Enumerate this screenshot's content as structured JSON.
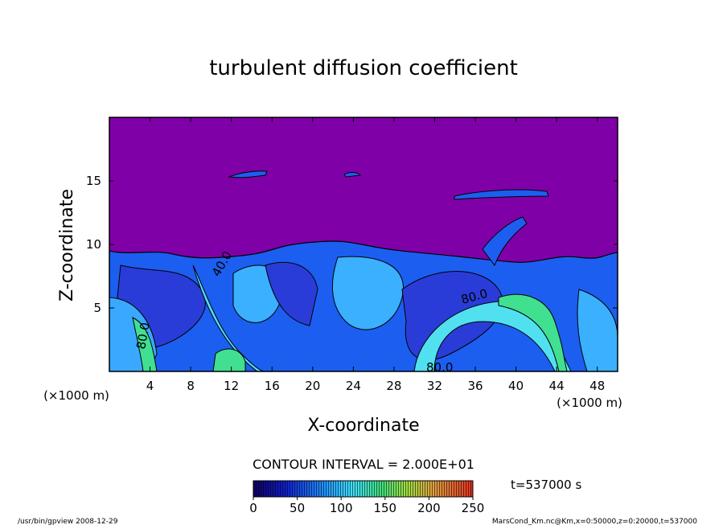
{
  "chart_data": {
    "type": "contour",
    "title": "turbulent diffusion coefficient",
    "x_label": "X-coordinate",
    "y_label": "Z-coordinate",
    "y_unit": "(×1000 m)",
    "x_unit": "(×1000 m)",
    "xlim": [
      0,
      50
    ],
    "xticks": [
      4,
      8,
      12,
      16,
      20,
      24,
      28,
      32,
      36,
      40,
      44,
      48
    ],
    "ylim": [
      0,
      20
    ],
    "yticks": [
      5,
      10,
      15
    ],
    "contour_labels": [
      "40.0",
      "80.0",
      "80.0",
      "80.0"
    ],
    "contour_interval": "CONTOUR INTERVAL = 2.000E+01",
    "colorbar": {
      "lim": [
        0,
        250
      ],
      "ticks": [
        0,
        50,
        100,
        150,
        200,
        250
      ]
    },
    "time_label": "t=537000 s",
    "footer_left": "/usr/bin/gpview   2008-12-29",
    "footer_right": "MarsCond_Km.nc@Km,x=0:50000,z=0:20000,t=537000"
  }
}
